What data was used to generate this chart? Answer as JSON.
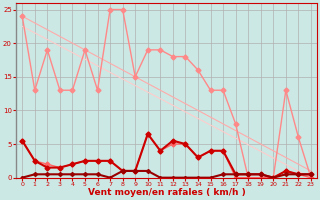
{
  "xlabel": "Vent moyen/en rafales ( km/h )",
  "bg_color": "#cce8e4",
  "grid_color": "#b0b0b0",
  "xlim": [
    -0.5,
    23.5
  ],
  "ylim": [
    0,
    26
  ],
  "xticks": [
    0,
    1,
    2,
    3,
    4,
    5,
    6,
    7,
    8,
    9,
    10,
    11,
    12,
    13,
    14,
    15,
    16,
    17,
    18,
    19,
    20,
    21,
    22,
    23
  ],
  "yticks": [
    0,
    5,
    10,
    15,
    20,
    25
  ],
  "line_diag1": {
    "x": [
      0,
      23
    ],
    "y": [
      24.0,
      1.0
    ],
    "color": "#ffaaaa",
    "lw": 0.8,
    "marker": null
  },
  "line_diag2": {
    "x": [
      0,
      23
    ],
    "y": [
      22.5,
      0.0
    ],
    "color": "#ffcccc",
    "lw": 0.8,
    "marker": null
  },
  "line_upper": {
    "x": [
      0,
      1,
      2,
      3,
      4,
      5,
      6,
      7,
      8,
      9,
      10,
      11,
      12,
      13,
      14,
      15,
      16,
      17,
      18,
      19,
      20,
      21,
      22,
      23
    ],
    "y": [
      24,
      13,
      19,
      13,
      13,
      19,
      13,
      25,
      25,
      15,
      19,
      19,
      18,
      18,
      16,
      13,
      13,
      8,
      0,
      0,
      0,
      13,
      6,
      0
    ],
    "color": "#ff8888",
    "lw": 1.0,
    "marker": "D",
    "ms": 2.5
  },
  "line_lower": {
    "x": [
      0,
      1,
      2,
      3,
      4,
      5,
      6,
      7,
      8,
      9,
      10,
      11,
      12,
      13,
      14,
      15,
      16,
      17,
      18,
      19,
      20,
      21,
      22,
      23
    ],
    "y": [
      5.5,
      2.5,
      2,
      1.5,
      2,
      2.5,
      2.5,
      2.5,
      1,
      1,
      6.5,
      4,
      5,
      5,
      3,
      4,
      4,
      0,
      0,
      0,
      0,
      1,
      0.5,
      0
    ],
    "color": "#ff6666",
    "lw": 1.0,
    "marker": "D",
    "ms": 2.5
  },
  "line_dark1": {
    "x": [
      0,
      1,
      2,
      3,
      4,
      5,
      6,
      7,
      8,
      9,
      10,
      11,
      12,
      13,
      14,
      15,
      16,
      17,
      18,
      19,
      20,
      21,
      22,
      23
    ],
    "y": [
      5.5,
      2.5,
      1.5,
      1.5,
      2,
      2.5,
      2.5,
      2.5,
      1,
      1,
      6.5,
      4,
      5.5,
      5,
      3,
      4,
      4,
      0.5,
      0.5,
      0.5,
      0,
      1,
      0.5,
      0.5
    ],
    "color": "#cc0000",
    "lw": 1.5,
    "marker": "D",
    "ms": 2.5
  },
  "line_dark2": {
    "x": [
      0,
      1,
      2,
      3,
      4,
      5,
      6,
      7,
      8,
      9,
      10,
      11,
      12,
      13,
      14,
      15,
      16,
      17,
      18,
      19,
      20,
      21,
      22,
      23
    ],
    "y": [
      0,
      0.5,
      0.5,
      0.5,
      0.5,
      0.5,
      0.5,
      0,
      1,
      1,
      1,
      0,
      0,
      0,
      0,
      0,
      0.5,
      0.5,
      0.5,
      0.5,
      0,
      0.5,
      0.5,
      0.5
    ],
    "color": "#990000",
    "lw": 1.5,
    "marker": "D",
    "ms": 2.0
  }
}
